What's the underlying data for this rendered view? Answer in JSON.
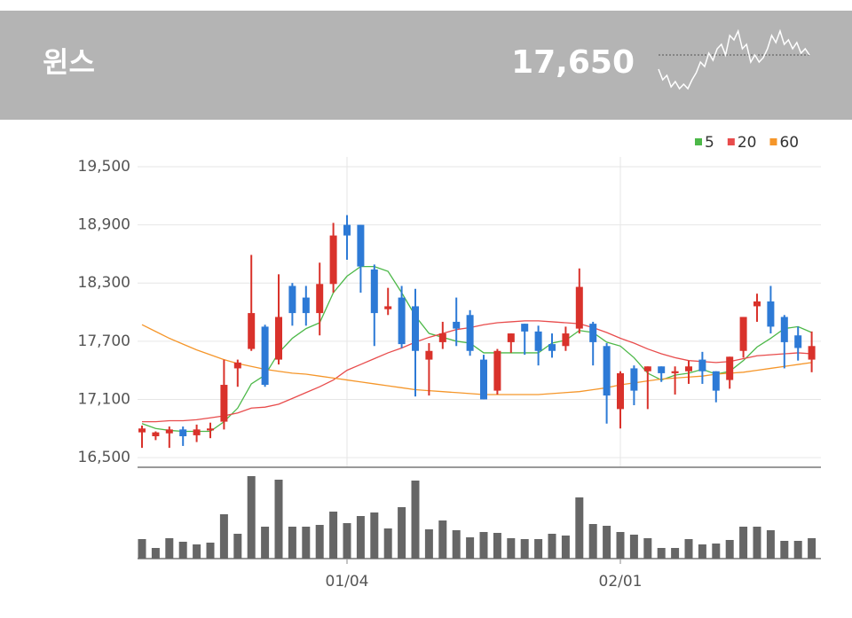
{
  "header": {
    "title": "윈스",
    "price": "17,650",
    "sparkline": [
      17495,
      17075,
      17250,
      16795,
      17005,
      16725,
      16900,
      16725,
      17075,
      17355,
      17775,
      17600,
      18125,
      17845,
      18300,
      18475,
      18055,
      18825,
      18650,
      19000,
      18300,
      18475,
      17775,
      18055,
      17775,
      17950,
      18300,
      18825,
      18545,
      19000,
      18475,
      18650,
      18300,
      18545,
      18125,
      18300,
      18055
    ]
  },
  "chart_data": {
    "type": "candlestick",
    "categories": [
      null,
      null,
      null,
      null,
      null,
      null,
      null,
      null,
      null,
      null,
      null,
      null,
      null,
      null,
      null,
      "01/04",
      null,
      null,
      null,
      null,
      null,
      null,
      null,
      null,
      null,
      null,
      null,
      null,
      null,
      null,
      null,
      null,
      null,
      null,
      null,
      "02/01",
      null,
      null,
      null,
      null,
      null,
      null,
      null,
      null,
      null,
      null,
      null,
      null,
      null,
      null
    ],
    "open": [
      16760,
      16720,
      16750,
      16790,
      16730,
      16780,
      16870,
      17420,
      17620,
      17850,
      17510,
      18270,
      18150,
      17990,
      18290,
      18900,
      18900,
      18440,
      18030,
      18150,
      18060,
      17510,
      17690,
      17900,
      17970,
      17510,
      17190,
      17690,
      17880,
      17800,
      17670,
      17650,
      17830,
      17880,
      17650,
      17000,
      17420,
      17390,
      17440,
      17370,
      17390,
      17510,
      17390,
      17300,
      17600,
      18060,
      18110,
      17950,
      17760,
      17510
    ],
    "high": [
      16830,
      16770,
      16820,
      16820,
      16840,
      16860,
      17510,
      17510,
      18590,
      17870,
      18390,
      18300,
      18270,
      18510,
      18920,
      19000,
      18900,
      18490,
      18250,
      18270,
      18240,
      17680,
      17900,
      18150,
      18020,
      17560,
      17620,
      17780,
      17880,
      17860,
      17780,
      17850,
      18450,
      17900,
      17680,
      17390,
      17450,
      17440,
      17440,
      17440,
      17500,
      17590,
      17390,
      17540,
      17950,
      18190,
      18270,
      17970,
      17850,
      17800
    ],
    "low": [
      16600,
      16680,
      16600,
      16620,
      16660,
      16700,
      16790,
      17230,
      17600,
      17230,
      17460,
      17860,
      17860,
      17760,
      18200,
      18540,
      18200,
      17650,
      17970,
      17630,
      17130,
      17140,
      17620,
      17650,
      17550,
      17100,
      17150,
      17580,
      17560,
      17450,
      17530,
      17600,
      17780,
      17450,
      16850,
      16800,
      17040,
      17000,
      17280,
      17150,
      17260,
      17260,
      17070,
      17210,
      17530,
      17900,
      17780,
      17420,
      17500,
      17380
    ],
    "close": [
      16800,
      16760,
      16790,
      16720,
      16790,
      16800,
      17250,
      17480,
      17990,
      17250,
      17950,
      17990,
      17990,
      18290,
      18790,
      18790,
      18470,
      17990,
      18060,
      17670,
      17600,
      17600,
      17780,
      17830,
      17600,
      17100,
      17600,
      17780,
      17800,
      17600,
      17600,
      17780,
      18260,
      17690,
      17140,
      17370,
      17190,
      17440,
      17370,
      17390,
      17440,
      17390,
      17190,
      17540,
      17950,
      18110,
      17850,
      17690,
      17630,
      17650
    ],
    "up_color": "#d9322b",
    "down_color": "#2d7ad6",
    "series": [
      {
        "name": "5",
        "color": "#4cb848",
        "values": [
          16850,
          16800,
          16780,
          16770,
          16770,
          16770,
          16870,
          17010,
          17260,
          17350,
          17580,
          17730,
          17830,
          17890,
          18200,
          18370,
          18470,
          18470,
          18420,
          18200,
          17960,
          17780,
          17740,
          17700,
          17680,
          17580,
          17580,
          17580,
          17580,
          17580,
          17680,
          17710,
          17810,
          17790,
          17690,
          17650,
          17530,
          17370,
          17300,
          17350,
          17370,
          17410,
          17360,
          17390,
          17500,
          17640,
          17730,
          17830,
          17850,
          17790
        ]
      },
      {
        "name": "20",
        "color": "#e84c4c",
        "values": [
          16870,
          16870,
          16880,
          16880,
          16890,
          16910,
          16930,
          16960,
          17010,
          17020,
          17050,
          17110,
          17170,
          17230,
          17300,
          17400,
          17460,
          17520,
          17580,
          17630,
          17690,
          17740,
          17780,
          17820,
          17840,
          17870,
          17890,
          17900,
          17910,
          17910,
          17900,
          17890,
          17880,
          17840,
          17790,
          17730,
          17680,
          17620,
          17570,
          17530,
          17500,
          17490,
          17480,
          17490,
          17520,
          17550,
          17560,
          17570,
          17580,
          17570
        ]
      },
      {
        "name": "60",
        "color": "#f5962a",
        "values": [
          17870,
          17800,
          17730,
          17670,
          17610,
          17560,
          17510,
          17470,
          17440,
          17410,
          17390,
          17370,
          17360,
          17340,
          17320,
          17300,
          17280,
          17260,
          17240,
          17220,
          17200,
          17190,
          17180,
          17170,
          17160,
          17150,
          17150,
          17150,
          17150,
          17150,
          17160,
          17170,
          17180,
          17200,
          17220,
          17250,
          17270,
          17290,
          17310,
          17320,
          17330,
          17340,
          17360,
          17370,
          17380,
          17400,
          17420,
          17440,
          17460,
          17480
        ]
      }
    ],
    "volume": [
      22,
      12,
      23,
      19,
      16,
      18,
      50,
      28,
      93,
      36,
      89,
      36,
      36,
      38,
      53,
      40,
      48,
      52,
      34,
      58,
      88,
      33,
      43,
      32,
      24,
      30,
      29,
      23,
      22,
      22,
      28,
      26,
      69,
      39,
      37,
      30,
      27,
      23,
      12,
      12,
      22,
      16,
      17,
      21,
      36,
      36,
      32,
      20,
      20,
      23
    ],
    "volume_color": "#666666",
    "ylim": [
      16400,
      19600
    ],
    "yticks": [
      {
        "value": 16500,
        "label": "16,500"
      },
      {
        "value": 17100,
        "label": "17,100"
      },
      {
        "value": 17700,
        "label": "17,700"
      },
      {
        "value": 18300,
        "label": "18,300"
      },
      {
        "value": 18900,
        "label": "18,900"
      },
      {
        "value": 19500,
        "label": "19,500"
      }
    ],
    "grid": true
  }
}
